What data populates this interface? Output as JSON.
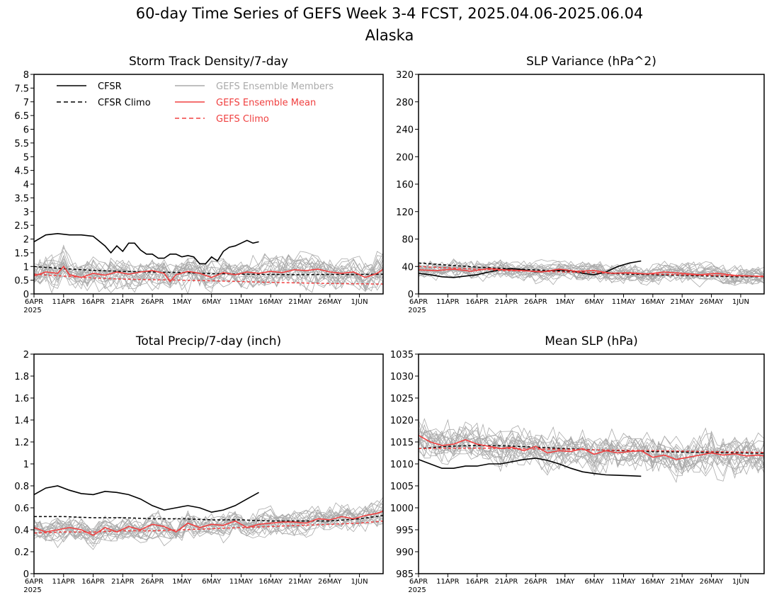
{
  "title": {
    "line1": "60-day Time Series of GEFS Week 3-4 FCST, 2025.04.06-2025.06.04",
    "line2": "Alaska"
  },
  "legend": {
    "items": [
      {
        "label": "CFSR",
        "color": "#000000",
        "dashed": false
      },
      {
        "label": "CFSR Climo",
        "color": "#000000",
        "dashed": true
      },
      {
        "label": "GEFS Ensemble Members",
        "color": "#aaaaaa",
        "dashed": false
      },
      {
        "label": "GEFS Ensemble Mean",
        "color": "#f04040",
        "dashed": false
      },
      {
        "label": "GEFS Climo",
        "color": "#f04040",
        "dashed": true
      }
    ]
  },
  "x_ticks": [
    "6APR",
    "11APR",
    "16APR",
    "21APR",
    "26APR",
    "1MAY",
    "6MAY",
    "11MAY",
    "16MAY",
    "21MAY",
    "26MAY",
    "1JUN"
  ],
  "x_year": "2025",
  "chart_data": [
    {
      "type": "line",
      "title": "Storm Track Density/7-day",
      "ylim": [
        0,
        8
      ],
      "yticks": [
        "0",
        "0.5",
        "1",
        "1.5",
        "2",
        "2.5",
        "3",
        "3.5",
        "4",
        "4.5",
        "5",
        "5.5",
        "6",
        "6.5",
        "7",
        "7.5",
        "8"
      ],
      "x_days": 60,
      "series": [
        {
          "name": "CFSR",
          "x": [
            0,
            2,
            4,
            6,
            8,
            10,
            12,
            13,
            14,
            15,
            16,
            17,
            18,
            19,
            20,
            21,
            22,
            23,
            24,
            25,
            26,
            27,
            28,
            29,
            30,
            31,
            32,
            33,
            34,
            35,
            36,
            37,
            38
          ],
          "values": [
            1.9,
            2.15,
            2.2,
            2.15,
            2.15,
            2.1,
            1.75,
            1.5,
            1.75,
            1.55,
            1.85,
            1.85,
            1.6,
            1.45,
            1.45,
            1.3,
            1.3,
            1.45,
            1.45,
            1.35,
            1.4,
            1.35,
            1.1,
            1.1,
            1.35,
            1.2,
            1.55,
            1.7,
            1.75,
            1.85,
            1.95,
            1.85,
            1.9
          ]
        },
        {
          "name": "CFSR Climo",
          "x": [
            0,
            5,
            10,
            15,
            20,
            25,
            30,
            35,
            40,
            45,
            50,
            55,
            59
          ],
          "values": [
            1.0,
            0.92,
            0.86,
            0.82,
            0.8,
            0.78,
            0.74,
            0.72,
            0.71,
            0.7,
            0.71,
            0.71,
            0.72
          ]
        },
        {
          "name": "GEFS Ensemble Mean",
          "x": [
            0,
            2,
            4,
            5,
            6,
            8,
            10,
            12,
            14,
            16,
            18,
            20,
            22,
            23,
            24,
            26,
            28,
            30,
            32,
            34,
            36,
            38,
            40,
            42,
            44,
            46,
            48,
            50,
            52,
            54,
            56,
            58,
            59
          ],
          "values": [
            0.65,
            0.8,
            0.75,
            1.0,
            0.7,
            0.6,
            0.75,
            0.68,
            0.8,
            0.72,
            0.8,
            0.85,
            0.75,
            0.45,
            0.7,
            0.82,
            0.75,
            0.6,
            0.78,
            0.7,
            0.8,
            0.75,
            0.82,
            0.78,
            0.88,
            0.85,
            0.9,
            0.8,
            0.75,
            0.8,
            0.6,
            0.75,
            0.9
          ]
        },
        {
          "name": "GEFS Climo",
          "x": [
            0,
            5,
            10,
            15,
            20,
            25,
            30,
            35,
            40,
            45,
            50,
            55,
            59
          ],
          "values": [
            0.72,
            0.65,
            0.58,
            0.54,
            0.52,
            0.5,
            0.48,
            0.45,
            0.42,
            0.4,
            0.38,
            0.37,
            0.36
          ]
        }
      ]
    },
    {
      "type": "line",
      "title": "SLP Variance (hPa^2)",
      "ylim": [
        0,
        320
      ],
      "yticks": [
        "0",
        "40",
        "80",
        "120",
        "160",
        "200",
        "240",
        "280",
        "320"
      ],
      "x_days": 60,
      "series": [
        {
          "name": "CFSR",
          "x": [
            0,
            2,
            4,
            6,
            8,
            10,
            12,
            14,
            16,
            18,
            20,
            22,
            24,
            26,
            28,
            30,
            32,
            34,
            36,
            38
          ],
          "values": [
            30,
            28,
            25,
            24,
            26,
            28,
            32,
            35,
            37,
            35,
            32,
            33,
            35,
            34,
            30,
            28,
            32,
            40,
            45,
            48
          ]
        },
        {
          "name": "CFSR Climo",
          "x": [
            0,
            5,
            10,
            15,
            20,
            25,
            30,
            35,
            40,
            45,
            50,
            55,
            59
          ],
          "values": [
            45,
            42,
            39,
            37,
            35,
            33,
            31,
            29,
            28,
            27,
            26,
            25,
            25
          ]
        },
        {
          "name": "GEFS Ensemble Mean",
          "x": [
            0,
            3,
            6,
            9,
            12,
            15,
            18,
            21,
            24,
            27,
            30,
            33,
            36,
            39,
            42,
            45,
            48,
            51,
            54,
            57,
            59
          ],
          "values": [
            35,
            34,
            36,
            33,
            37,
            35,
            34,
            32,
            36,
            33,
            34,
            30,
            31,
            29,
            32,
            30,
            28,
            30,
            27,
            26,
            25
          ]
        },
        {
          "name": "GEFS Climo",
          "x": [
            0,
            5,
            10,
            15,
            20,
            25,
            30,
            35,
            40,
            45,
            50,
            55,
            59
          ],
          "values": [
            40,
            38,
            36,
            34,
            33,
            32,
            31,
            30,
            29,
            28,
            27,
            26,
            26
          ]
        }
      ]
    },
    {
      "type": "line",
      "title": "Total Precip/7-day (inch)",
      "ylim": [
        0,
        2
      ],
      "yticks": [
        "0",
        "0.2",
        "0.4",
        "0.6",
        "0.8",
        "1",
        "1.2",
        "1.4",
        "1.6",
        "1.8",
        "2"
      ],
      "x_days": 60,
      "series": [
        {
          "name": "CFSR",
          "x": [
            0,
            2,
            4,
            6,
            8,
            10,
            12,
            14,
            16,
            18,
            20,
            22,
            24,
            26,
            28,
            30,
            32,
            34,
            36,
            38
          ],
          "values": [
            0.72,
            0.78,
            0.8,
            0.76,
            0.73,
            0.72,
            0.75,
            0.74,
            0.72,
            0.68,
            0.62,
            0.58,
            0.6,
            0.62,
            0.6,
            0.56,
            0.58,
            0.62,
            0.68,
            0.74
          ]
        },
        {
          "name": "CFSR Climo",
          "x": [
            0,
            5,
            10,
            15,
            20,
            25,
            30,
            35,
            40,
            45,
            50,
            55,
            59
          ],
          "values": [
            0.52,
            0.52,
            0.51,
            0.51,
            0.5,
            0.5,
            0.49,
            0.49,
            0.48,
            0.48,
            0.48,
            0.5,
            0.53
          ]
        },
        {
          "name": "GEFS Ensemble Mean",
          "x": [
            0,
            2,
            4,
            6,
            8,
            10,
            12,
            14,
            16,
            18,
            20,
            22,
            24,
            26,
            28,
            30,
            32,
            34,
            36,
            38,
            40,
            42,
            44,
            46,
            48,
            50,
            52,
            54,
            56,
            58,
            59
          ],
          "values": [
            0.42,
            0.38,
            0.4,
            0.42,
            0.4,
            0.35,
            0.42,
            0.38,
            0.43,
            0.4,
            0.45,
            0.43,
            0.38,
            0.46,
            0.42,
            0.45,
            0.44,
            0.48,
            0.42,
            0.45,
            0.46,
            0.47,
            0.47,
            0.46,
            0.5,
            0.49,
            0.52,
            0.5,
            0.53,
            0.55,
            0.57
          ]
        },
        {
          "name": "GEFS Climo",
          "x": [
            0,
            5,
            10,
            15,
            20,
            25,
            30,
            35,
            40,
            45,
            50,
            55,
            59
          ],
          "values": [
            0.37,
            0.38,
            0.38,
            0.39,
            0.39,
            0.4,
            0.41,
            0.42,
            0.43,
            0.44,
            0.45,
            0.46,
            0.48
          ]
        }
      ]
    },
    {
      "type": "line",
      "title": "Mean SLP (hPa)",
      "ylim": [
        985,
        1035
      ],
      "yticks": [
        "985",
        "990",
        "995",
        "1000",
        "1005",
        "1010",
        "1015",
        "1020",
        "1025",
        "1030",
        "1035"
      ],
      "x_days": 60,
      "series": [
        {
          "name": "CFSR",
          "x": [
            0,
            2,
            4,
            6,
            8,
            10,
            12,
            14,
            16,
            18,
            20,
            22,
            24,
            26,
            28,
            30,
            32,
            34,
            36,
            38
          ],
          "values": [
            1011,
            1010,
            1009,
            1009,
            1009.5,
            1009.5,
            1010,
            1010,
            1010.5,
            1011,
            1011.3,
            1010.8,
            1010,
            1009,
            1008.2,
            1007.8,
            1007.5,
            1007.4,
            1007.3,
            1007.2
          ]
        },
        {
          "name": "CFSR Climo",
          "x": [
            0,
            5,
            10,
            15,
            20,
            25,
            30,
            35,
            40,
            45,
            50,
            55,
            59
          ],
          "values": [
            1013.5,
            1014,
            1014.2,
            1014.1,
            1013.8,
            1013.5,
            1013.2,
            1013,
            1012.8,
            1012.7,
            1012.6,
            1012.5,
            1012.4
          ]
        },
        {
          "name": "GEFS Ensemble Mean",
          "x": [
            0,
            2,
            4,
            6,
            8,
            10,
            12,
            14,
            16,
            18,
            20,
            22,
            24,
            26,
            28,
            30,
            32,
            34,
            36,
            38,
            40,
            42,
            44,
            46,
            48,
            50,
            52,
            54,
            56,
            58,
            59
          ],
          "values": [
            1016.5,
            1015,
            1014.2,
            1014.5,
            1015.5,
            1014.5,
            1014,
            1013.5,
            1013.8,
            1013,
            1014,
            1012.5,
            1013,
            1012.8,
            1013.5,
            1012.2,
            1013,
            1012.5,
            1012.8,
            1013,
            1011.5,
            1012,
            1011,
            1011.5,
            1012,
            1012.5,
            1012,
            1012.3,
            1011.8,
            1012,
            1011.8
          ]
        },
        {
          "name": "GEFS Climo",
          "x": [
            0,
            5,
            10,
            15,
            20,
            25,
            30,
            35,
            40,
            45,
            50,
            55,
            59
          ],
          "values": [
            1013.5,
            1013.6,
            1013.6,
            1013.5,
            1013.4,
            1013.3,
            1013.2,
            1013.1,
            1013,
            1012.9,
            1012.8,
            1012.7,
            1012.6
          ]
        }
      ]
    }
  ]
}
